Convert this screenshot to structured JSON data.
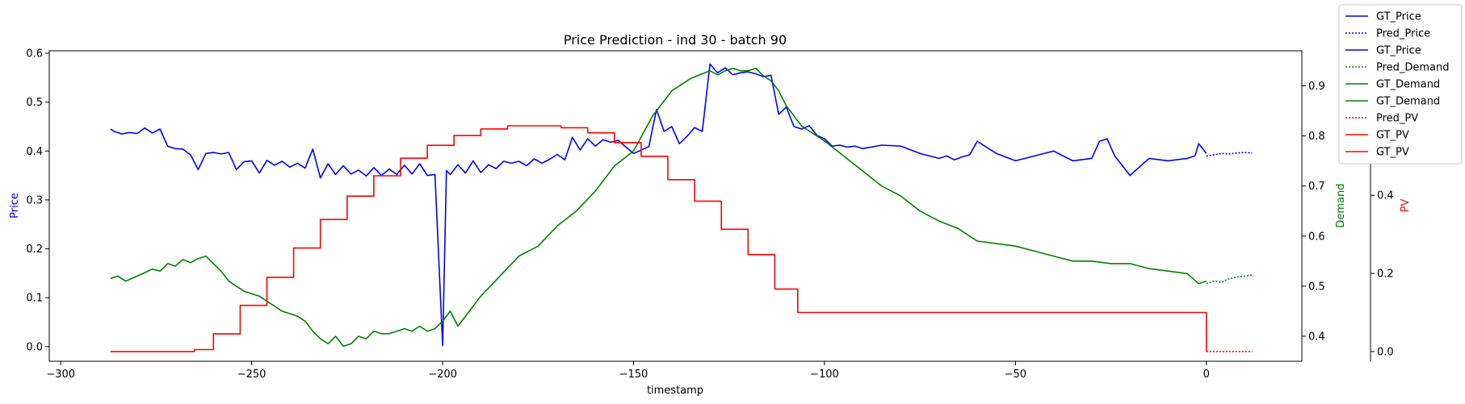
{
  "chart_data": {
    "type": "line",
    "title": "Price Prediction - ind 30 - batch 90",
    "xlabel": "timestamp",
    "xlim": [
      -303,
      25
    ],
    "x_ticks": [
      -300,
      -250,
      -200,
      -150,
      -100,
      -50,
      0
    ],
    "axes": {
      "price": {
        "label": "Price",
        "color": "#0000ff",
        "ylim": [
          -0.03,
          0.605
        ],
        "ticks": [
          0.0,
          0.1,
          0.2,
          0.3,
          0.4,
          0.5,
          0.6
        ]
      },
      "demand": {
        "label": "Demand",
        "color": "#008000",
        "ylim": [
          0.35,
          0.97
        ],
        "ticks": [
          0.4,
          0.5,
          0.6,
          0.7,
          0.8,
          0.9
        ]
      },
      "pv": {
        "label": "PV",
        "color": "#ff0000",
        "ylim": [
          -0.025,
          0.77
        ],
        "ticks": [
          0.0,
          0.2,
          0.4
        ]
      }
    },
    "legend": {
      "position": "outside-top-right",
      "entries": [
        {
          "label": "GT_Price",
          "color": "#0000ff",
          "style": "solid"
        },
        {
          "label": "Pred_Price",
          "color": "#0000ff",
          "style": "dotted"
        },
        {
          "label": "GT_Price",
          "color": "#0000ff",
          "style": "solid"
        },
        {
          "label": "Pred_Demand",
          "color": "#008000",
          "style": "dotted"
        },
        {
          "label": "GT_Demand",
          "color": "#008000",
          "style": "solid"
        },
        {
          "label": "GT_Demand",
          "color": "#008000",
          "style": "solid"
        },
        {
          "label": "Pred_PV",
          "color": "#ff0000",
          "style": "dotted"
        },
        {
          "label": "GT_PV",
          "color": "#ff0000",
          "style": "solid"
        },
        {
          "label": "GT_PV",
          "color": "#ff0000",
          "style": "solid"
        }
      ]
    },
    "series": [
      {
        "name": "GT_Price",
        "axis": "price",
        "color": "#0000ff",
        "style": "solid",
        "x": [
          -287,
          -286,
          -284,
          -282,
          -280,
          -278,
          -276,
          -274,
          -272,
          -270,
          -268,
          -266,
          -264,
          -262,
          -260,
          -258,
          -256,
          -254,
          -252,
          -250,
          -248,
          -246,
          -244,
          -242,
          -240,
          -238,
          -236,
          -234,
          -232,
          -230,
          -228,
          -226,
          -224,
          -222,
          -220,
          -218,
          -216,
          -214,
          -212,
          -210,
          -208,
          -206,
          -204,
          -202,
          -200,
          -199,
          -198,
          -196,
          -194,
          -192,
          -190,
          -188,
          -186,
          -184,
          -182,
          -180,
          -178,
          -176,
          -174,
          -172,
          -170,
          -168,
          -166,
          -164,
          -162,
          -160,
          -158,
          -156,
          -154,
          -152,
          -150,
          -148,
          -146,
          -144,
          -142,
          -140,
          -138,
          -136,
          -134,
          -132,
          -130,
          -128,
          -126,
          -124,
          -122,
          -120,
          -118,
          -116,
          -114,
          -112,
          -110,
          -108,
          -106,
          -104,
          -102,
          -100,
          -98,
          -96,
          -94,
          -92,
          -90,
          -85,
          -80,
          -75,
          -70,
          -68,
          -66,
          -64,
          -62,
          -60,
          -55,
          -50,
          -45,
          -40,
          -35,
          -30,
          -28,
          -26,
          -24,
          -22,
          -20,
          -15,
          -10,
          -5,
          -3,
          -2,
          0
        ],
        "y": [
          0.445,
          0.44,
          0.435,
          0.438,
          0.436,
          0.447,
          0.437,
          0.445,
          0.41,
          0.405,
          0.404,
          0.392,
          0.362,
          0.395,
          0.397,
          0.394,
          0.397,
          0.362,
          0.378,
          0.38,
          0.355,
          0.381,
          0.371,
          0.379,
          0.367,
          0.375,
          0.365,
          0.404,
          0.345,
          0.374,
          0.352,
          0.37,
          0.353,
          0.361,
          0.349,
          0.366,
          0.35,
          0.363,
          0.352,
          0.371,
          0.353,
          0.374,
          0.35,
          0.352,
          0.002,
          0.36,
          0.352,
          0.372,
          0.355,
          0.38,
          0.356,
          0.372,
          0.364,
          0.379,
          0.375,
          0.379,
          0.37,
          0.384,
          0.375,
          0.383,
          0.393,
          0.382,
          0.428,
          0.402,
          0.425,
          0.41,
          0.423,
          0.418,
          0.422,
          0.408,
          0.395,
          0.402,
          0.409,
          0.485,
          0.44,
          0.45,
          0.415,
          0.43,
          0.448,
          0.44,
          0.578,
          0.56,
          0.57,
          0.556,
          0.56,
          0.562,
          0.558,
          0.552,
          0.555,
          0.475,
          0.49,
          0.45,
          0.445,
          0.452,
          0.432,
          0.425,
          0.41,
          0.412,
          0.408,
          0.41,
          0.405,
          0.412,
          0.41,
          0.395,
          0.385,
          0.39,
          0.382,
          0.388,
          0.392,
          0.42,
          0.395,
          0.38,
          0.39,
          0.4,
          0.38,
          0.385,
          0.42,
          0.425,
          0.39,
          0.37,
          0.35,
          0.385,
          0.38,
          0.385,
          0.39,
          0.415,
          0.395
        ]
      },
      {
        "name": "Pred_Price",
        "axis": "price",
        "color": "#0000ff",
        "style": "dotted",
        "x": [
          0,
          2,
          4,
          6,
          8,
          10,
          12
        ],
        "y": [
          0.39,
          0.392,
          0.395,
          0.394,
          0.396,
          0.397,
          0.396
        ]
      },
      {
        "name": "GT_Demand",
        "axis": "demand",
        "color": "#008000",
        "style": "solid",
        "x": [
          -287,
          -285,
          -283,
          -280,
          -278,
          -276,
          -274,
          -272,
          -270,
          -268,
          -266,
          -264,
          -262,
          -260,
          -258,
          -256,
          -254,
          -252,
          -250,
          -248,
          -246,
          -244,
          -242,
          -240,
          -238,
          -236,
          -234,
          -232,
          -230,
          -228,
          -226,
          -224,
          -222,
          -220,
          -218,
          -216,
          -214,
          -212,
          -210,
          -208,
          -206,
          -204,
          -202,
          -200,
          -198,
          -196,
          -194,
          -192,
          -190,
          -185,
          -180,
          -175,
          -170,
          -165,
          -160,
          -155,
          -150,
          -145,
          -140,
          -135,
          -130,
          -128,
          -126,
          -124,
          -122,
          -120,
          -118,
          -116,
          -114,
          -112,
          -110,
          -108,
          -106,
          -104,
          -102,
          -100,
          -95,
          -90,
          -85,
          -80,
          -75,
          -70,
          -65,
          -60,
          -55,
          -50,
          -45,
          -40,
          -35,
          -30,
          -25,
          -20,
          -15,
          -10,
          -5,
          -2,
          0
        ],
        "y": [
          0.515,
          0.52,
          0.51,
          0.52,
          0.527,
          0.534,
          0.53,
          0.545,
          0.54,
          0.553,
          0.547,
          0.555,
          0.56,
          0.545,
          0.53,
          0.51,
          0.5,
          0.49,
          0.485,
          0.48,
          0.47,
          0.46,
          0.45,
          0.445,
          0.44,
          0.43,
          0.41,
          0.395,
          0.385,
          0.4,
          0.38,
          0.385,
          0.4,
          0.395,
          0.41,
          0.405,
          0.405,
          0.41,
          0.415,
          0.41,
          0.42,
          0.41,
          0.415,
          0.43,
          0.45,
          0.42,
          0.44,
          0.46,
          0.48,
          0.52,
          0.56,
          0.58,
          0.62,
          0.65,
          0.69,
          0.74,
          0.77,
          0.84,
          0.89,
          0.915,
          0.93,
          0.922,
          0.93,
          0.935,
          0.93,
          0.93,
          0.935,
          0.92,
          0.91,
          0.89,
          0.86,
          0.84,
          0.82,
          0.81,
          0.8,
          0.79,
          0.76,
          0.73,
          0.7,
          0.68,
          0.65,
          0.63,
          0.615,
          0.59,
          0.585,
          0.58,
          0.57,
          0.56,
          0.55,
          0.55,
          0.545,
          0.545,
          0.535,
          0.53,
          0.525,
          0.505,
          0.51
        ]
      },
      {
        "name": "Pred_Demand",
        "axis": "demand",
        "color": "#008000",
        "style": "dotted",
        "x": [
          0,
          2,
          4,
          6,
          8,
          10,
          12
        ],
        "y": [
          0.505,
          0.51,
          0.508,
          0.515,
          0.518,
          0.52,
          0.522
        ]
      },
      {
        "name": "GT_PV",
        "axis": "pv",
        "color": "#ff0000",
        "style": "step",
        "x": [
          -287,
          -265,
          -260,
          -253,
          -246,
          -239,
          -232,
          -225,
          -218,
          -211,
          -204,
          -197,
          -190,
          -183,
          -176,
          -169,
          -162,
          -155,
          -148,
          -141,
          -134,
          -127,
          -120,
          -113,
          -107,
          0
        ],
        "y": [
          0.0,
          0.005,
          0.045,
          0.118,
          0.19,
          0.265,
          0.338,
          0.398,
          0.45,
          0.495,
          0.528,
          0.553,
          0.57,
          0.578,
          0.578,
          0.573,
          0.56,
          0.535,
          0.5,
          0.44,
          0.385,
          0.313,
          0.248,
          0.16,
          0.1,
          0.0
        ]
      },
      {
        "name": "Pred_PV",
        "axis": "pv",
        "color": "#ff0000",
        "style": "dotted",
        "x": [
          0,
          12
        ],
        "y": [
          0.0,
          0.0
        ]
      }
    ]
  }
}
